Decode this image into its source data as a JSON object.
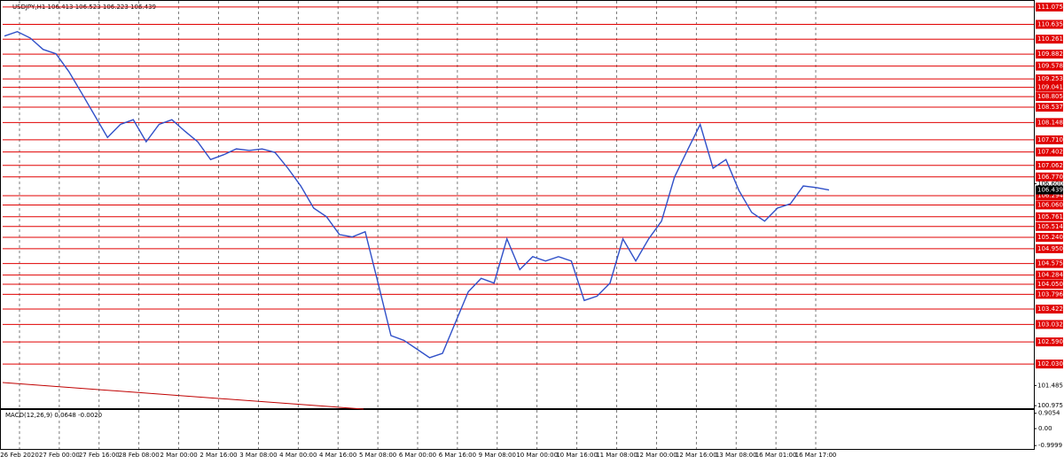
{
  "chart_data": {
    "type": "line",
    "title": "USDJPY,H1  106.413 106.523 106.223 106.439",
    "series": [
      {
        "name": "USDJPY",
        "color": "#3050c8",
        "values": [
          110.34,
          110.45,
          110.29,
          110.0,
          109.89,
          109.44,
          108.89,
          108.33,
          107.77,
          108.1,
          108.22,
          107.66,
          108.1,
          108.22,
          107.93,
          107.66,
          107.21,
          107.33,
          107.48,
          107.44,
          107.48,
          107.39,
          106.99,
          106.54,
          105.98,
          105.76,
          105.31,
          105.25,
          105.38,
          104.08,
          102.75,
          102.63,
          102.41,
          102.19,
          102.3,
          103.08,
          103.86,
          104.2,
          104.08,
          105.2,
          104.42,
          104.75,
          104.64,
          104.75,
          104.64,
          103.64,
          103.75,
          104.08,
          105.2,
          104.64,
          105.2,
          105.65,
          106.76,
          107.44,
          108.1,
          106.99,
          107.21,
          106.43,
          105.87,
          105.65,
          105.98,
          106.09,
          106.54,
          106.5,
          106.44
        ]
      }
    ],
    "ylim": [
      100.91,
      111.23
    ],
    "levels": [
      111.075,
      110.635,
      110.261,
      109.882,
      109.578,
      109.253,
      109.041,
      108.805,
      108.537,
      108.148,
      {
        "value": 107.71,
        "label": "107.710"
      },
      107.402,
      107.062,
      {
        "value": 106.77,
        "label": "106.770"
      },
      106.294,
      {
        "value": 106.06,
        "label": "106.060"
      },
      105.761,
      105.514,
      {
        "value": 105.24,
        "label": "105.240"
      },
      {
        "value": 104.95,
        "label": "104.950"
      },
      104.575,
      104.284,
      {
        "value": 104.05,
        "label": "104.050"
      },
      103.796,
      103.422,
      103.032,
      {
        "value": 102.59,
        "label": "102.590"
      },
      {
        "value": 102.03,
        "label": "102.030"
      }
    ],
    "yticks": [
      {
        "value": 106.6,
        "label": "106.600"
      },
      101.485,
      100.975
    ],
    "current_price": 106.439,
    "xticks": [
      "26 Feb 2020",
      "27 Feb 00:00",
      "27 Feb 16:00",
      "28 Feb 08:00",
      "2 Mar 00:00",
      "2 Mar 16:00",
      "3 Mar 08:00",
      "4 Mar 00:00",
      "4 Mar 16:00",
      "5 Mar 08:00",
      "6 Mar 00:00",
      "6 Mar 16:00",
      "9 Mar 08:00",
      "10 Mar 00:00",
      "10 Mar 16:00",
      "11 Mar 08:00",
      "12 Mar 00:00",
      "12 Mar 16:00",
      "13 Mar 08:00",
      "16 Mar 01:00",
      "16 Mar 17:00"
    ],
    "indicator": {
      "title": "MACD(12,26,9) 0.0648 -0.0020",
      "ylim": [
        -1.2,
        1.1
      ],
      "yticks": [
        0.9054,
        {
          "value": 0,
          "label": "0.00"
        },
        -0.9999
      ]
    }
  }
}
